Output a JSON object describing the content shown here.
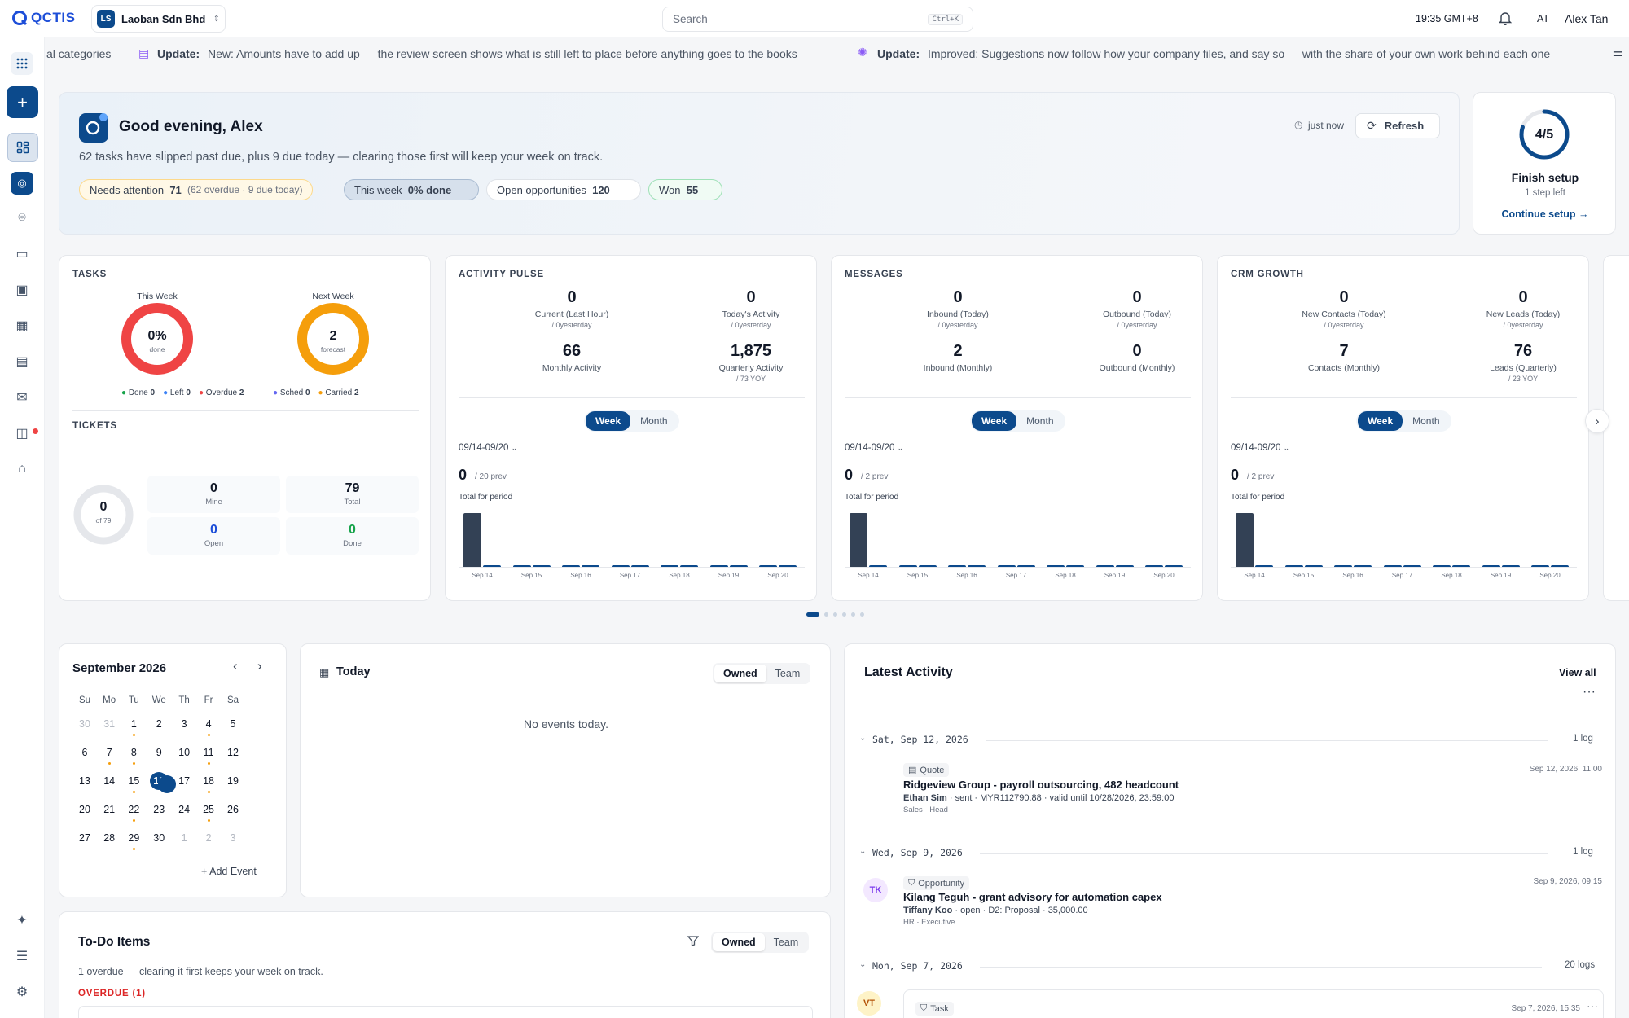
{
  "brand": {
    "logo": "QCTIS"
  },
  "company": {
    "initials": "LS",
    "name": "Laoban Sdn Bhd"
  },
  "search": {
    "placeholder": "Search",
    "shortcut": "Ctrl+K"
  },
  "header": {
    "time": "19:35 GMT+8",
    "user_initials": "AT",
    "user_name": "Alex Tan"
  },
  "ticker": [
    {
      "text": "al categories"
    },
    {
      "label": "Update:",
      "text": "New: Amounts have to add up — the review screen shows what is still left to place before anything goes to the books"
    },
    {
      "label": "Update:",
      "text": "Improved: Suggestions now follow how your company files, and say so — with the share of your own work behind each one"
    }
  ],
  "greeting": {
    "title": "Good evening, Alex",
    "subtitle": "62 tasks have slipped past due, plus 9 due today — clearing those first will keep your week on track.",
    "updated": "just now",
    "refresh": "Refresh",
    "pills": [
      {
        "label": "Needs attention",
        "value": "71",
        "extra": "(62 overdue · 9 due today)"
      },
      {
        "label": "This week",
        "value": "0% done",
        "extra": ""
      },
      {
        "label": "Open opportunities",
        "value": "120",
        "extra": ""
      },
      {
        "label": "Won",
        "value": "55",
        "extra": ""
      }
    ]
  },
  "setup": {
    "progress": "4/5",
    "progress_fraction": 0.8,
    "title": "Finish setup",
    "sub": "1 step left",
    "link": "Continue setup"
  },
  "tasks": {
    "title": "TASKS",
    "this_week": {
      "label": "This Week",
      "value": "0%",
      "sub": "done"
    },
    "next_week": {
      "label": "Next Week",
      "value": "2",
      "sub": "forecast"
    },
    "legend1": [
      {
        "label": "Done",
        "value": "0"
      },
      {
        "label": "Left",
        "value": "0"
      },
      {
        "label": "Overdue",
        "value": "2"
      }
    ],
    "legend2": [
      {
        "label": "Sched",
        "value": "0"
      },
      {
        "label": "Carried",
        "value": "2"
      }
    ]
  },
  "tickets": {
    "title": "TICKETS",
    "ring_value": "0",
    "ring_sub": "of 79",
    "stats": [
      {
        "value": "0",
        "label": "Mine"
      },
      {
        "value": "79",
        "label": "Total"
      },
      {
        "value": "0",
        "label": "Open"
      },
      {
        "value": "0",
        "label": "Done"
      }
    ]
  },
  "colors": {
    "primary": "#0c4a8c",
    "danger": "#ef4444",
    "warning": "#f59e0b",
    "success": "#16a34a",
    "bar_dark": "#334155"
  },
  "pulse_cards": [
    {
      "title": "ACTIVITY PULSE",
      "metrics": [
        {
          "value": "0",
          "label": "Current (Last Hour)",
          "sub": "/ 0yesterday"
        },
        {
          "value": "0",
          "label": "Today's Activity",
          "sub": "/ 0yesterday"
        },
        {
          "value": "66",
          "label": "Monthly Activity",
          "sub": ""
        },
        {
          "value": "1,875",
          "label": "Quarterly Activity",
          "sub": "/ 73 YOY"
        }
      ],
      "tabs": [
        "Week",
        "Month"
      ],
      "range": "09/14-09/20",
      "total": "0",
      "prev": "/ 20 prev",
      "total_label": "Total for period",
      "chart_data": {
        "type": "bar",
        "categories": [
          "Sep 14",
          "Sep 15",
          "Sep 16",
          "Sep 17",
          "Sep 18",
          "Sep 19",
          "Sep 20"
        ],
        "series": [
          {
            "values": [
              20,
              0,
              0,
              0,
              0,
              0,
              0
            ]
          },
          {
            "values": [
              0,
              0,
              0,
              0,
              0,
              0,
              0
            ]
          }
        ]
      }
    },
    {
      "title": "MESSAGES",
      "metrics": [
        {
          "value": "0",
          "label": "Inbound (Today)",
          "sub": "/ 0yesterday"
        },
        {
          "value": "0",
          "label": "Outbound (Today)",
          "sub": "/ 0yesterday"
        },
        {
          "value": "2",
          "label": "Inbound (Monthly)",
          "sub": ""
        },
        {
          "value": "0",
          "label": "Outbound (Monthly)",
          "sub": ""
        }
      ],
      "tabs": [
        "Week",
        "Month"
      ],
      "range": "09/14-09/20",
      "total": "0",
      "prev": "/ 2 prev",
      "total_label": "Total for period",
      "chart_data": {
        "type": "bar",
        "categories": [
          "Sep 14",
          "Sep 15",
          "Sep 16",
          "Sep 17",
          "Sep 18",
          "Sep 19",
          "Sep 20"
        ],
        "series": [
          {
            "values": [
              2,
              0,
              0,
              0,
              0,
              0,
              0
            ]
          },
          {
            "values": [
              0,
              0,
              0,
              0,
              0,
              0,
              0
            ]
          }
        ]
      }
    },
    {
      "title": "CRM GROWTH",
      "metrics": [
        {
          "value": "0",
          "label": "New Contacts (Today)",
          "sub": "/ 0yesterday"
        },
        {
          "value": "0",
          "label": "New Leads (Today)",
          "sub": "/ 0yesterday"
        },
        {
          "value": "7",
          "label": "Contacts (Monthly)",
          "sub": ""
        },
        {
          "value": "76",
          "label": "Leads (Quarterly)",
          "sub": "/ 23 YOY"
        }
      ],
      "tabs": [
        "Week",
        "Month"
      ],
      "range": "09/14-09/20",
      "total": "0",
      "prev": "/ 2 prev",
      "total_label": "Total for period",
      "chart_data": {
        "type": "bar",
        "categories": [
          "Sep 14",
          "Sep 15",
          "Sep 16",
          "Sep 17",
          "Sep 18",
          "Sep 19",
          "Sep 20"
        ],
        "series": [
          {
            "values": [
              2,
              0,
              0,
              0,
              0,
              0,
              0
            ]
          },
          {
            "values": [
              0,
              0,
              0,
              0,
              0,
              0,
              0
            ]
          }
        ]
      }
    }
  ],
  "calendar": {
    "month": "September 2026",
    "weekdays": [
      "Su",
      "Mo",
      "Tu",
      "We",
      "Th",
      "Fr",
      "Sa"
    ],
    "weeks": [
      [
        {
          "d": "30",
          "m": 1
        },
        {
          "d": "31",
          "m": 1
        },
        {
          "d": "1",
          "e": 1
        },
        {
          "d": "2"
        },
        {
          "d": "3"
        },
        {
          "d": "4",
          "e": 1
        },
        {
          "d": "5"
        }
      ],
      [
        {
          "d": "6"
        },
        {
          "d": "7",
          "e": 1
        },
        {
          "d": "8",
          "e": 1
        },
        {
          "d": "9"
        },
        {
          "d": "10"
        },
        {
          "d": "11",
          "e": 1
        },
        {
          "d": "12"
        }
      ],
      [
        {
          "d": "13"
        },
        {
          "d": "14"
        },
        {
          "d": "15",
          "e": 1
        },
        {
          "d": "16",
          "t": 1,
          "e": 1
        },
        {
          "d": "17"
        },
        {
          "d": "18",
          "e": 1
        },
        {
          "d": "19"
        }
      ],
      [
        {
          "d": "20"
        },
        {
          "d": "21"
        },
        {
          "d": "22",
          "e": 1
        },
        {
          "d": "23"
        },
        {
          "d": "24"
        },
        {
          "d": "25",
          "e": 1
        },
        {
          "d": "26"
        }
      ],
      [
        {
          "d": "27"
        },
        {
          "d": "28"
        },
        {
          "d": "29",
          "e": 1
        },
        {
          "d": "30"
        },
        {
          "d": "1",
          "m": 1
        },
        {
          "d": "2",
          "m": 1
        },
        {
          "d": "3",
          "m": 1
        }
      ]
    ],
    "add_event": "Add Event"
  },
  "today": {
    "title": "Today",
    "tabs": [
      "Owned",
      "Team"
    ],
    "empty": "No events today."
  },
  "todo": {
    "title": "To-Do Items",
    "tabs": [
      "Owned",
      "Team"
    ],
    "subtitle": "1 overdue — clearing it first keeps your week on track.",
    "overdue_label": "OVERDUE (1)"
  },
  "activity": {
    "title": "Latest Activity",
    "view_all": "View all",
    "days": [
      {
        "date": "Sat, Sep 12, 2026",
        "count": "1 log"
      },
      {
        "date": "Wed, Sep 9, 2026",
        "count": "1 log"
      },
      {
        "date": "Mon, Sep 7, 2026",
        "count": "20 logs"
      }
    ],
    "entries": [
      {
        "type": "Quote",
        "title": "Ridgeview Group - payroll outsourcing, 482 headcount",
        "person": "Ethan Sim",
        "details": "· sent · MYR112790.88 · valid until 10/28/2026, 23:59:00",
        "role": "Sales · Head",
        "time": "Sep 12, 2026, 11:00",
        "initials": ""
      },
      {
        "type": "Opportunity",
        "title": "Kilang Teguh - grant advisory for automation capex",
        "person": "Tiffany Koo",
        "details": "· open · D2: Proposal · 35,000.00",
        "role": "HR · Executive",
        "time": "Sep 9, 2026, 09:15",
        "initials": "TK"
      },
      {
        "type": "Task",
        "title": "",
        "person": "",
        "details": "",
        "role": "",
        "time": "Sep 7, 2026, 15:35",
        "initials": "VT"
      }
    ]
  }
}
